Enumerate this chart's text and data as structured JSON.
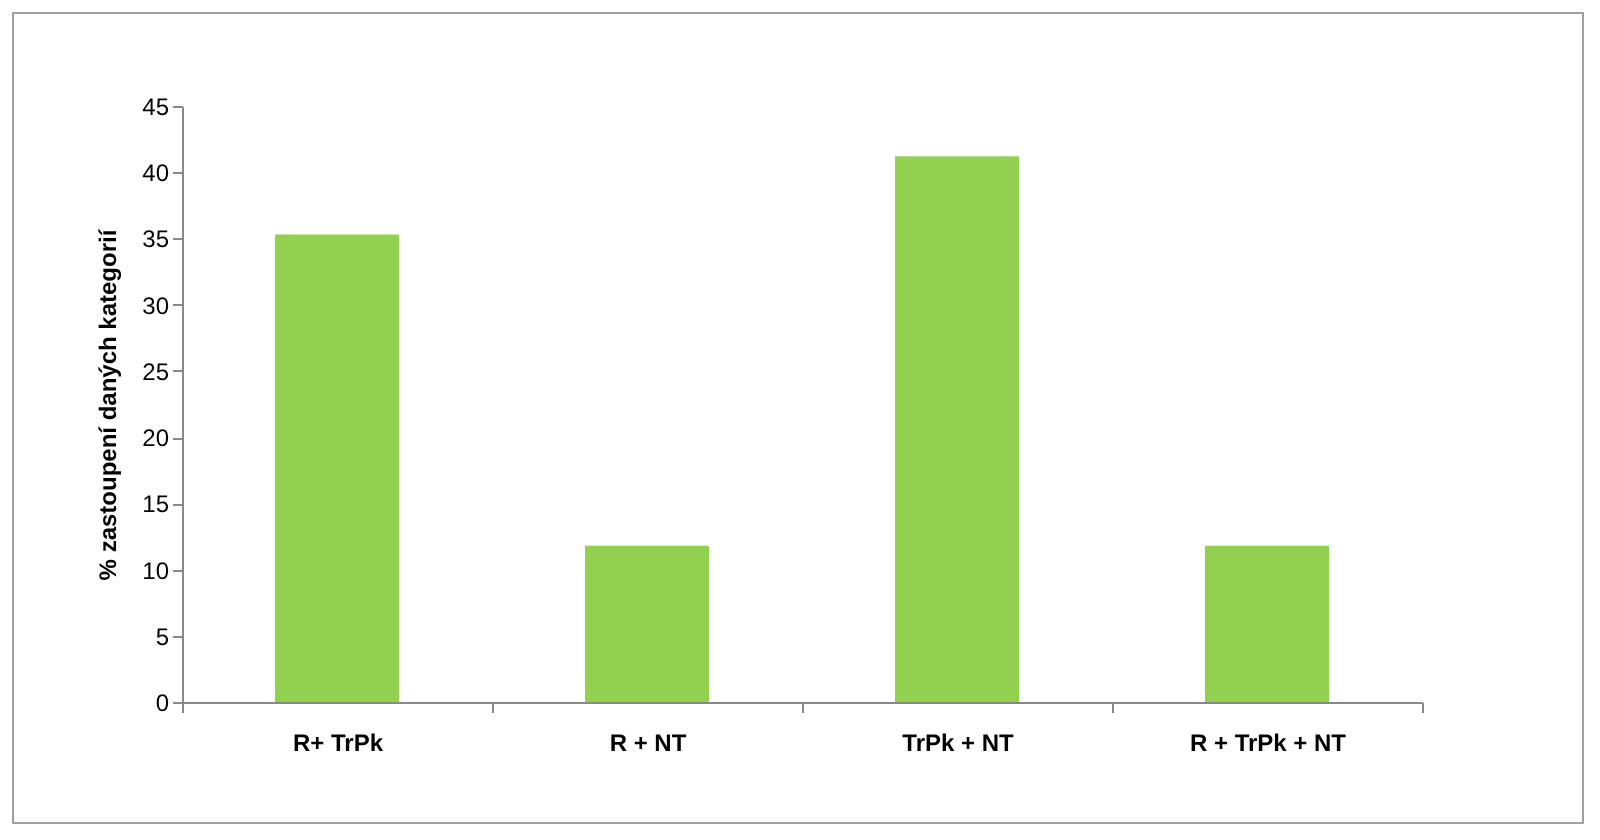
{
  "chart_data": {
    "type": "bar",
    "ylabel": "% zastoupení daných kategorií",
    "categories": [
      "R+ TrPk",
      "R + NT",
      "TrPk + NT",
      "R + TrPk + NT"
    ],
    "values": [
      35.3,
      11.8,
      41.2,
      11.8
    ],
    "color": "#92d050",
    "ylim": [
      0,
      45
    ],
    "yticks": [
      0,
      5,
      10,
      15,
      20,
      25,
      30,
      35,
      40,
      45
    ],
    "grid": false
  }
}
